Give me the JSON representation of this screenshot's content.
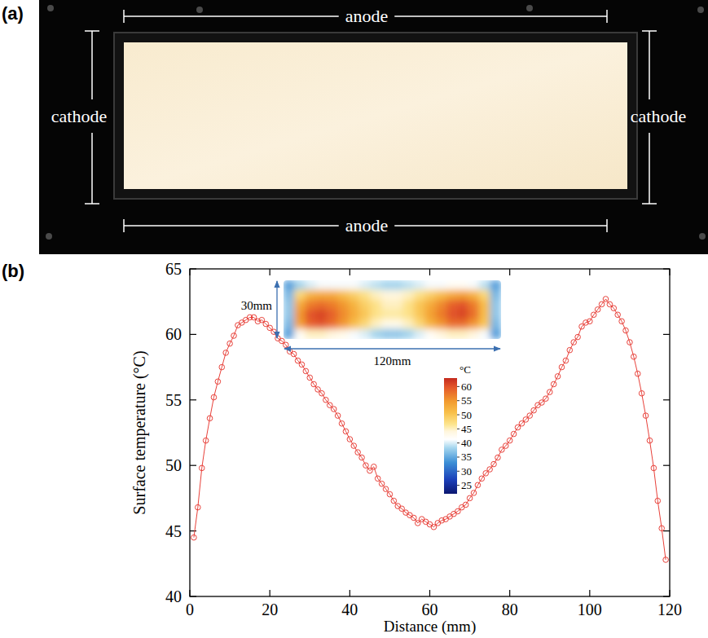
{
  "photo": {
    "panel": "(a)",
    "labels": {
      "top": "anode",
      "bottom": "anode",
      "left": "cathode",
      "right": "cathode"
    }
  },
  "chart_data": {
    "panel": "(b)",
    "type": "line",
    "x_label": "Distance (mm)",
    "y_label": "Surface temperature (°C)",
    "xlim": [
      0,
      120
    ],
    "xticks": [
      0,
      20,
      40,
      60,
      80,
      100,
      120
    ],
    "ylim": [
      40,
      65
    ],
    "yticks": [
      40,
      45,
      50,
      55,
      60,
      65
    ],
    "grid": false,
    "color": "#e8413a",
    "marker": "circle-open",
    "line_style": "solid",
    "x": [
      1,
      2,
      3,
      4,
      5,
      6,
      7,
      8,
      9,
      10,
      11,
      12,
      13,
      14,
      15,
      16,
      17,
      18,
      19,
      20,
      21,
      22,
      23,
      24,
      25,
      26,
      27,
      28,
      29,
      30,
      31,
      32,
      33,
      34,
      35,
      36,
      37,
      38,
      39,
      40,
      41,
      42,
      43,
      44,
      45,
      46,
      47,
      48,
      49,
      50,
      51,
      52,
      53,
      54,
      55,
      56,
      57,
      58,
      59,
      60,
      61,
      62,
      63,
      64,
      65,
      66,
      67,
      68,
      69,
      70,
      71,
      72,
      73,
      74,
      75,
      76,
      77,
      78,
      79,
      80,
      81,
      82,
      83,
      84,
      85,
      86,
      87,
      88,
      89,
      90,
      91,
      92,
      93,
      94,
      95,
      96,
      97,
      98,
      99,
      100,
      101,
      102,
      103,
      104,
      105,
      106,
      107,
      108,
      109,
      110,
      111,
      112,
      113,
      114,
      115,
      116,
      117,
      118,
      119
    ],
    "values": [
      44.5,
      46.8,
      49.8,
      51.9,
      53.6,
      55.2,
      56.4,
      57.5,
      58.6,
      59.3,
      59.9,
      60.7,
      60.9,
      61.1,
      61.3,
      61.3,
      61.0,
      61.1,
      60.8,
      60.5,
      60.2,
      59.7,
      59.5,
      59.2,
      58.7,
      58.5,
      58.0,
      57.7,
      57.2,
      56.7,
      56.2,
      55.8,
      55.5,
      55.0,
      54.6,
      54.3,
      53.8,
      53.2,
      52.6,
      52.0,
      51.5,
      51.0,
      50.6,
      50.0,
      49.6,
      49.9,
      49.0,
      48.6,
      48.2,
      47.8,
      47.3,
      46.9,
      46.7,
      46.4,
      46.2,
      46.0,
      45.6,
      45.9,
      45.7,
      45.5,
      45.3,
      45.6,
      45.8,
      45.9,
      46.1,
      46.3,
      46.5,
      46.8,
      47.0,
      47.5,
      47.9,
      48.5,
      49.0,
      49.4,
      49.7,
      50.1,
      50.6,
      51.2,
      51.5,
      51.9,
      52.4,
      52.9,
      53.2,
      53.5,
      53.8,
      54.2,
      54.6,
      54.8,
      55.1,
      55.6,
      56.2,
      56.8,
      57.5,
      58.0,
      58.8,
      59.4,
      59.8,
      60.6,
      60.9,
      61.0,
      61.5,
      61.9,
      62.3,
      62.7,
      62.3,
      62.0,
      61.5,
      61.0,
      60.3,
      59.4,
      58.3,
      57.0,
      55.5,
      53.8,
      51.9,
      49.8,
      47.3,
      45.2,
      42.8
    ],
    "inset": {
      "height_label": "30mm",
      "width_label": "120mm",
      "cells": [
        [
          34,
          38,
          40,
          41,
          41,
          41,
          41,
          40,
          39,
          38,
          38,
          39,
          40,
          41,
          41,
          42,
          42,
          41,
          39,
          34
        ],
        [
          36,
          48,
          52,
          53,
          53,
          51,
          49,
          47,
          45,
          44,
          44,
          45,
          47,
          49,
          51,
          53,
          54,
          52,
          48,
          36
        ],
        [
          37,
          53,
          57,
          58,
          57,
          55,
          52,
          49,
          47,
          45,
          45,
          47,
          50,
          53,
          56,
          59,
          60,
          57,
          51,
          37
        ],
        [
          37,
          55,
          60,
          61,
          59,
          56,
          53,
          50,
          47,
          46,
          46,
          47,
          50,
          54,
          57,
          60,
          61,
          58,
          51,
          37
        ],
        [
          36,
          54,
          59,
          60,
          58,
          55,
          51,
          48,
          45,
          43,
          43,
          45,
          48,
          52,
          55,
          58,
          58,
          55,
          50,
          36
        ],
        [
          34,
          42,
          45,
          45,
          44,
          43,
          41,
          40,
          38,
          37,
          37,
          38,
          40,
          42,
          44,
          45,
          45,
          44,
          41,
          34
        ]
      ],
      "colorbar_label": "°C",
      "colorbar_range": [
        22,
        63
      ],
      "colorbar_ticks": [
        25,
        30,
        35,
        40,
        45,
        50,
        55,
        60
      ]
    }
  }
}
